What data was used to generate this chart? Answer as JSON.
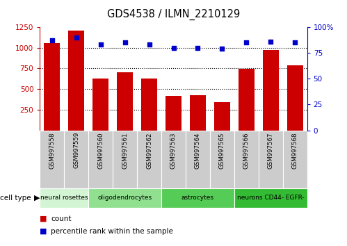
{
  "title": "GDS4538 / ILMN_2210129",
  "samples": [
    "GSM997558",
    "GSM997559",
    "GSM997560",
    "GSM997561",
    "GSM997562",
    "GSM997563",
    "GSM997564",
    "GSM997565",
    "GSM997566",
    "GSM997567",
    "GSM997568"
  ],
  "counts": [
    1055,
    1210,
    630,
    700,
    630,
    415,
    425,
    340,
    745,
    975,
    790
  ],
  "percentiles": [
    87,
    90,
    83,
    85,
    83,
    80,
    80,
    79,
    85,
    86,
    85
  ],
  "cell_types": [
    {
      "label": "neural rosettes",
      "start": 0,
      "end": 2,
      "color": "#d4f5d4"
    },
    {
      "label": "oligodendrocytes",
      "start": 2,
      "end": 5,
      "color": "#90e090"
    },
    {
      "label": "astrocytes",
      "start": 5,
      "end": 8,
      "color": "#55cc55"
    },
    {
      "label": "neurons CD44- EGFR-",
      "start": 8,
      "end": 11,
      "color": "#33bb33"
    }
  ],
  "bar_color": "#cc0000",
  "dot_color": "#0000cc",
  "ylim_left": [
    0,
    1250
  ],
  "ylim_right": [
    0,
    100
  ],
  "yticks_left": [
    250,
    500,
    750,
    1000,
    1250
  ],
  "yticks_right": [
    0,
    25,
    50,
    75,
    100
  ],
  "grid_levels": [
    250,
    500,
    750,
    1000
  ],
  "bg_color": "#ffffff",
  "tick_label_area_color": "#cccccc",
  "cell_type_label": "cell type"
}
